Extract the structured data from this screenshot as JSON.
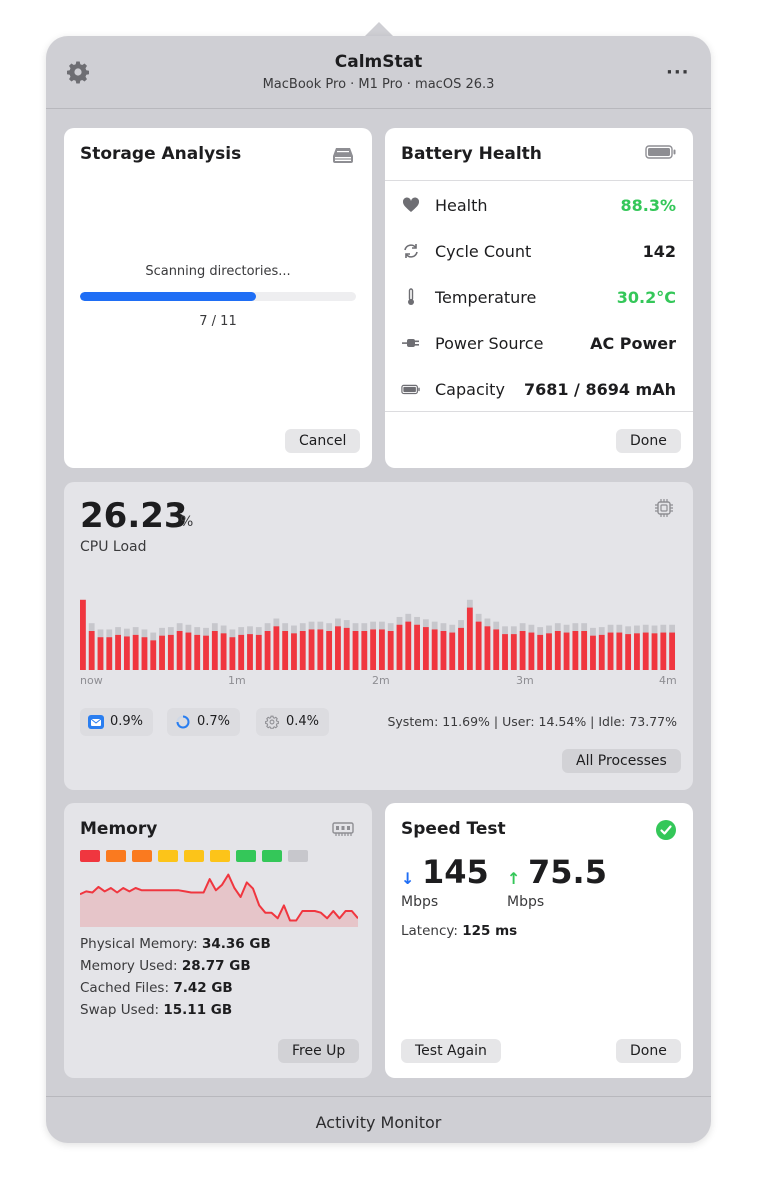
{
  "header": {
    "title": "CalmStat",
    "subtitle": "MacBook Pro · M1 Pro · macOS 26.3",
    "settings_icon": "gear-icon",
    "more_label": "···"
  },
  "storage": {
    "title": "Storage Analysis",
    "icon": "drive-icon",
    "status": "Scanning directories...",
    "progress": {
      "current": 7,
      "total": 11
    },
    "progress_label": "7 / 11",
    "progress_color": "#1f6ef5",
    "cancel_label": "Cancel"
  },
  "battery": {
    "title": "Battery Health",
    "icon": "battery-icon",
    "rows": [
      {
        "icon": "heart-icon",
        "label": "Health",
        "value": "88.3%",
        "color": "#34c759"
      },
      {
        "icon": "cycle-icon",
        "label": "Cycle Count",
        "value": "142",
        "color": "#1d1d1f"
      },
      {
        "icon": "thermometer-icon",
        "label": "Temperature",
        "value": "30.2°C",
        "color": "#34c759"
      },
      {
        "icon": "plug-icon",
        "label": "Power Source",
        "value": "AC Power",
        "color": "#1d1d1f"
      },
      {
        "icon": "battery-icon",
        "label": "Capacity",
        "value": "7681 / 8694 mAh",
        "color": "#1d1d1f"
      }
    ],
    "done_label": "Done"
  },
  "cpu": {
    "value": "26.23",
    "unit": "%",
    "label": "CPU Load",
    "icon": "cpu-chip-icon",
    "ticks": [
      "now",
      "1m",
      "2m",
      "3m",
      "4m"
    ],
    "bar_color": "#f0363f",
    "history": [
      0.9,
      0.5,
      0.42,
      0.42,
      0.45,
      0.43,
      0.45,
      0.42,
      0.38,
      0.44,
      0.45,
      0.5,
      0.48,
      0.45,
      0.44,
      0.5,
      0.47,
      0.42,
      0.45,
      0.46,
      0.45,
      0.5,
      0.56,
      0.5,
      0.47,
      0.5,
      0.52,
      0.52,
      0.5,
      0.56,
      0.54,
      0.5,
      0.5,
      0.52,
      0.52,
      0.5,
      0.58,
      0.62,
      0.58,
      0.55,
      0.52,
      0.5,
      0.48,
      0.54,
      0.8,
      0.62,
      0.56,
      0.52,
      0.46,
      0.46,
      0.5,
      0.48,
      0.45,
      0.47,
      0.5,
      0.48,
      0.5,
      0.5,
      0.44,
      0.45,
      0.48,
      0.48,
      0.46,
      0.47,
      0.48,
      0.47,
      0.48,
      0.48
    ],
    "history_peak": [
      0.9,
      0.6,
      0.52,
      0.52,
      0.55,
      0.53,
      0.55,
      0.52,
      0.48,
      0.54,
      0.55,
      0.6,
      0.58,
      0.55,
      0.54,
      0.6,
      0.57,
      0.52,
      0.55,
      0.56,
      0.55,
      0.6,
      0.66,
      0.6,
      0.57,
      0.6,
      0.62,
      0.62,
      0.6,
      0.66,
      0.64,
      0.6,
      0.6,
      0.62,
      0.62,
      0.6,
      0.68,
      0.72,
      0.68,
      0.65,
      0.62,
      0.6,
      0.58,
      0.64,
      0.9,
      0.72,
      0.66,
      0.62,
      0.56,
      0.56,
      0.6,
      0.58,
      0.55,
      0.57,
      0.6,
      0.58,
      0.6,
      0.6,
      0.54,
      0.55,
      0.58,
      0.58,
      0.56,
      0.57,
      0.58,
      0.57,
      0.58,
      0.58
    ],
    "processes": [
      {
        "icon": "mail-app-icon",
        "value": "0.9%"
      },
      {
        "icon": "progress-ring-icon",
        "value": "0.7%"
      },
      {
        "icon": "gear-icon",
        "value": "0.4%"
      }
    ],
    "summary": "System: 11.69% | User: 14.54% | Idle: 73.77%",
    "all_processes_label": "All Processes"
  },
  "memory": {
    "title": "Memory",
    "icon": "memory-chip-icon",
    "pressure_segments": [
      "#f0363f",
      "#fa7a1f",
      "#fa7a1f",
      "#fcc419",
      "#fcc419",
      "#fcc419",
      "#34c759",
      "#34c759",
      "#c7c7cc"
    ],
    "graph": [
      0.55,
      0.6,
      0.58,
      0.68,
      0.6,
      0.66,
      0.58,
      0.66,
      0.6,
      0.66,
      0.62,
      0.62,
      0.62,
      0.62,
      0.62,
      0.62,
      0.62,
      0.6,
      0.58,
      0.58,
      0.58,
      0.82,
      0.62,
      0.72,
      0.9,
      0.66,
      0.5,
      0.76,
      0.65,
      0.35,
      0.22,
      0.22,
      0.12,
      0.35,
      0.08,
      0.08,
      0.25,
      0.25,
      0.25,
      0.22,
      0.12,
      0.25,
      0.12,
      0.25,
      0.25,
      0.12
    ],
    "graph_color": "#f0363f",
    "stats": [
      {
        "label": "Physical Memory:",
        "value": "34.36 GB"
      },
      {
        "label": "Memory Used:",
        "value": "28.77 GB"
      },
      {
        "label": "Cached Files:",
        "value": "7.42 GB"
      },
      {
        "label": "Swap Used:",
        "value": "15.11 GB"
      }
    ],
    "free_up_label": "Free Up"
  },
  "speed": {
    "title": "Speed Test",
    "status_icon": "check-circle-icon",
    "download": "145",
    "download_unit": "Mbps",
    "upload": "75.5",
    "upload_unit": "Mbps",
    "latency_label": "Latency:",
    "latency_value": "125 ms",
    "down_color": "#1f6ef5",
    "up_color": "#34c759",
    "test_again_label": "Test Again",
    "done_label": "Done"
  },
  "footer": {
    "label": "Activity Monitor"
  }
}
